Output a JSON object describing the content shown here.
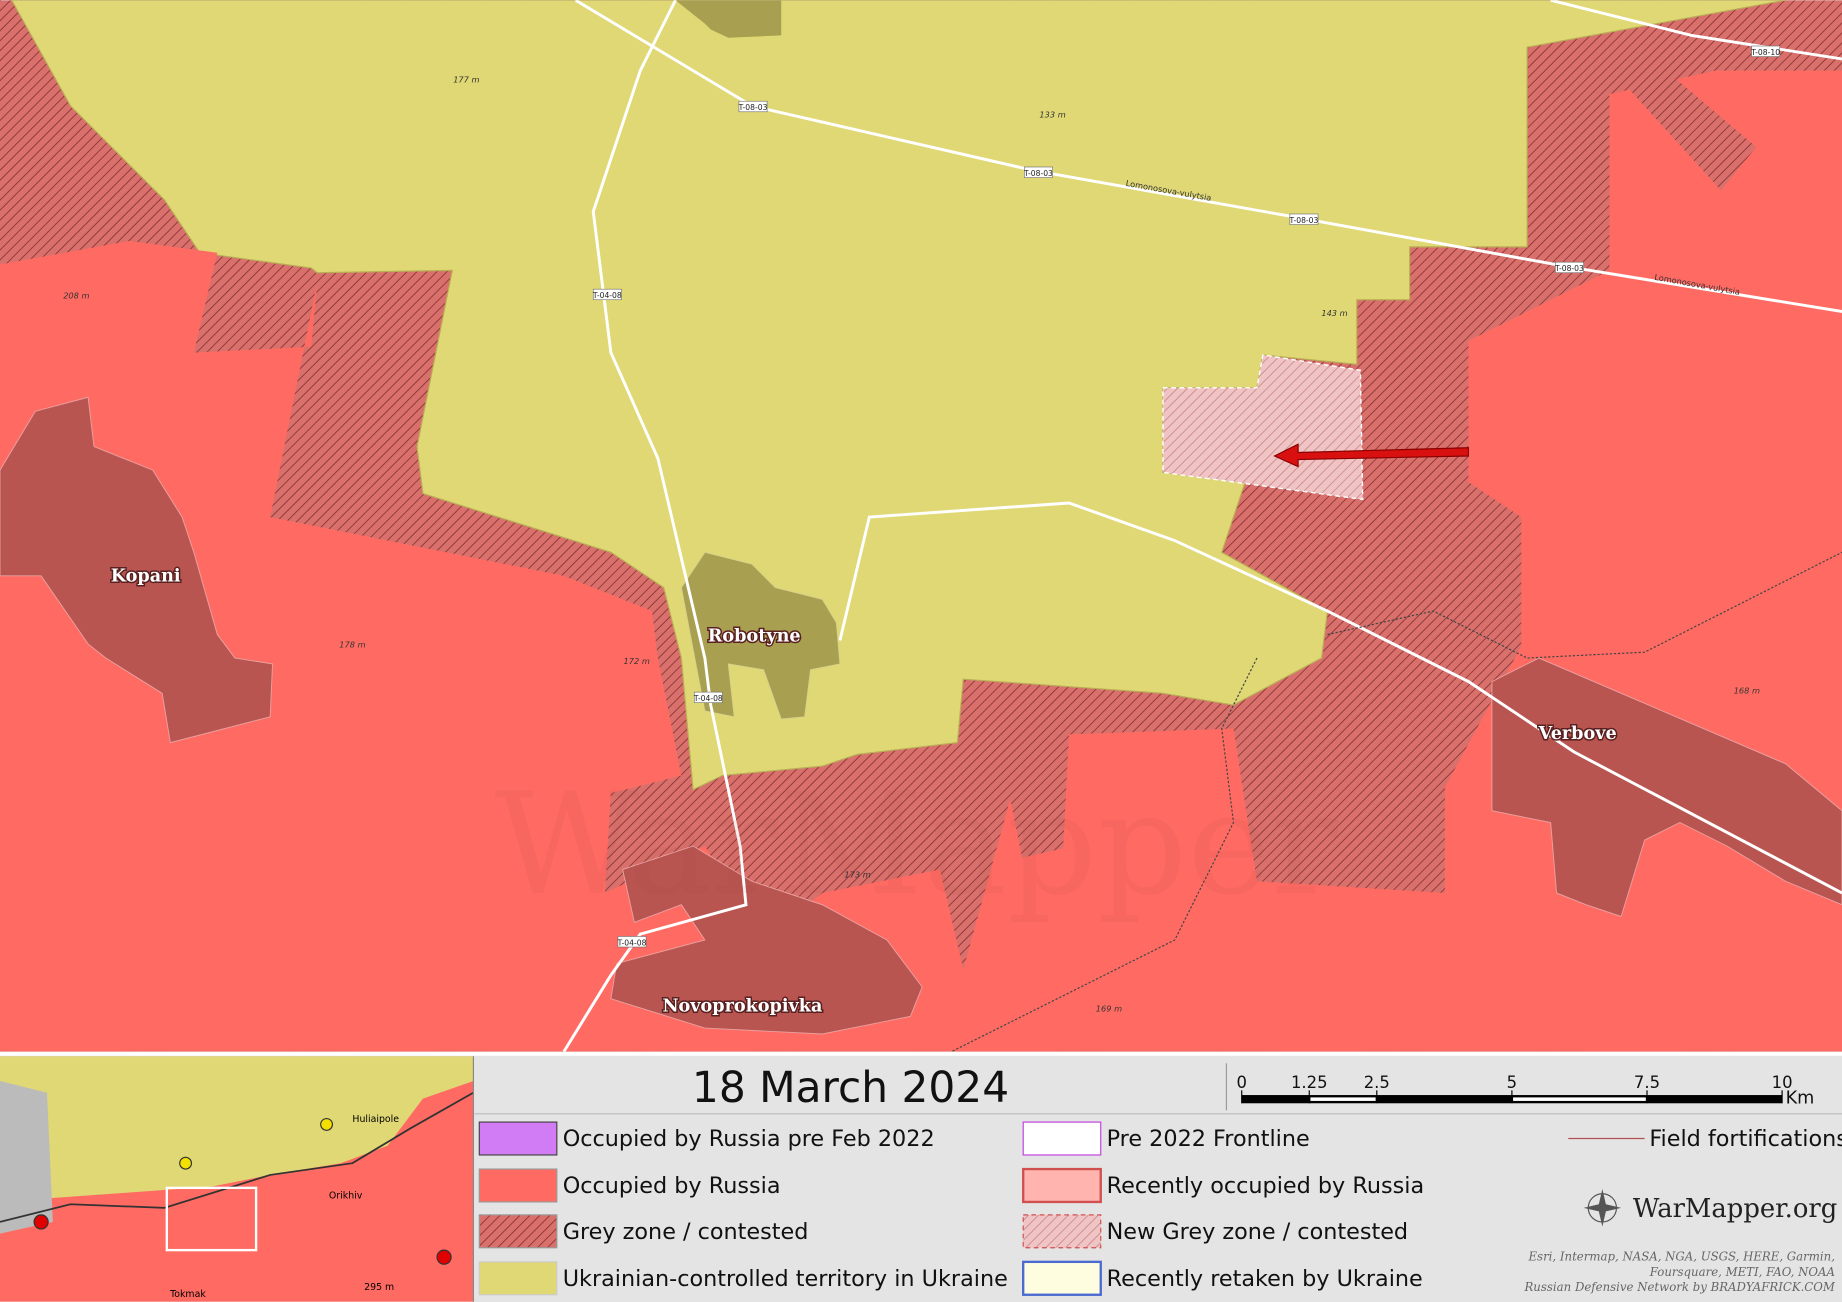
{
  "map": {
    "places": [
      "Kopani",
      "Robotyne",
      "Verbove",
      "Novoprokopivka"
    ],
    "elevations": [
      "177 m",
      "133 m",
      "143 m",
      "208 m",
      "178 m",
      "172 m",
      "173 m",
      "169 m",
      "168 m"
    ],
    "roads": [
      "T-08-03",
      "T-08-03",
      "T-08-03",
      "T-08-03",
      "T-04-08",
      "T-04-08",
      "T-04-08",
      "T-08-10"
    ],
    "streets": [
      "Lomonosova-vulytsia",
      "Lomonosova-vulytsia"
    ],
    "watermark": "WarMapper"
  },
  "inset": {
    "labels": [
      "Huliaipole",
      "Orikhiv",
      "Tokmak",
      "295 m"
    ]
  },
  "title": "18 March 2024",
  "scale": {
    "ticks": [
      0,
      1.25,
      2.5,
      5,
      7.5,
      10
    ],
    "unit": "Km"
  },
  "legend": [
    "Occupied by Russia pre Feb 2022",
    "Occupied by Russia",
    "Grey zone / contested",
    "Ukrainian-controlled territory in Ukraine",
    "Pre 2022 Frontline",
    "Recently occupied by Russia",
    "New Grey zone / contested",
    "Recently retaken by Ukraine",
    "Field fortifications"
  ],
  "brand": "WarMapper.org",
  "credits": [
    "Esri, Intermap, NASA, NGA, USGS, HERE, Garmin,",
    "Foursquare, METI, FAO, NOAA",
    "Russian Defensive Network by BRADYAFRICK.COM"
  ]
}
